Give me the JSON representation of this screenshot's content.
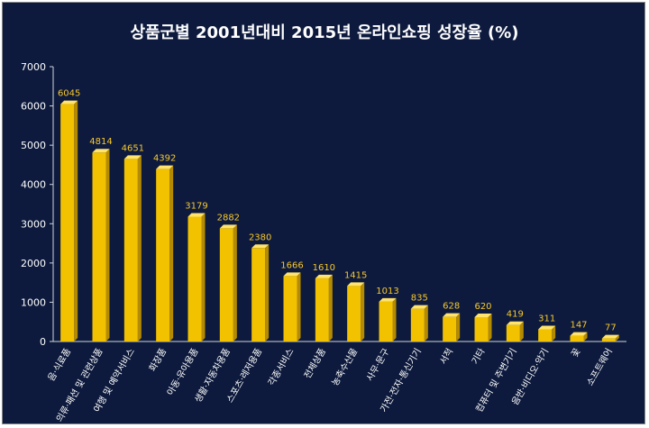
{
  "chart_data": {
    "type": "bar",
    "title": "상품군별 2001년대비 2015년 온라인쇼핑 성장율 (%)",
    "xlabel": "",
    "ylabel": "",
    "ylim": [
      0,
      7000
    ],
    "yticks": [
      0,
      1000,
      2000,
      3000,
      4000,
      5000,
      6000,
      7000
    ],
    "grid": false,
    "legend": "none",
    "categories": [
      "음·식료품",
      "의류·패션 및 관련상품",
      "여행 및 예약서비스",
      "화장품",
      "아동·유아용품",
      "생활·자동차용품",
      "스포츠·레저용품",
      "각종서비스",
      "전체상품",
      "농축수산물",
      "사무·문구",
      "가전·전자·통신기기",
      "서적",
      "기타",
      "컴퓨터 및 주변기기",
      "음반·비디오·악기",
      "꽃",
      "소프트웨어"
    ],
    "values": [
      6045,
      4814,
      4651,
      4392,
      3179,
      2882,
      2380,
      1666,
      1610,
      1415,
      1013,
      835,
      628,
      620,
      419,
      311,
      147,
      77
    ]
  },
  "colors": {
    "background": "#0d1a3d",
    "bar_front": "#f2c200",
    "bar_top": "#ffe36b",
    "bar_side": "#b38a00",
    "text": "#ffffff",
    "data_label": "#f7c82c",
    "axis": "#d0d4dc"
  }
}
